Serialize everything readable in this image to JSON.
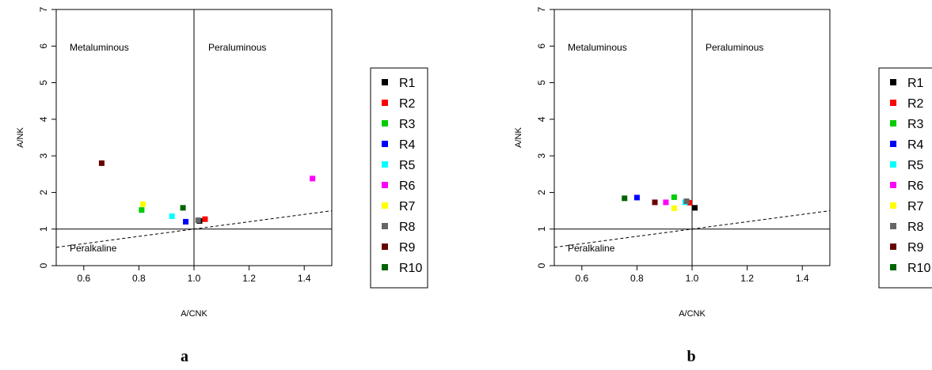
{
  "chart_data": [
    {
      "type": "scatter",
      "panel_label": "a",
      "xlabel": "A/CNK",
      "ylabel": "A/NK",
      "xlim": [
        0.5,
        1.5
      ],
      "ylim": [
        0,
        7
      ],
      "xticks": [
        "0.6",
        "0.8",
        "1.0",
        "1.2",
        "1.4"
      ],
      "yticks": [
        "0",
        "1",
        "2",
        "3",
        "4",
        "5",
        "6",
        "7"
      ],
      "region_labels": [
        "Metaluminous",
        "Peraluminous",
        "Peralkaline"
      ],
      "reference_lines": {
        "vertical_x": 1.0,
        "horizontal_y": 1.0,
        "dashed_line": [
          [
            0.5,
            0.5
          ],
          [
            1.5,
            1.5
          ]
        ]
      },
      "legend_position": "right",
      "series": [
        {
          "name": "R1",
          "color": "#000000",
          "x": [
            1.02
          ],
          "y": [
            1.22
          ]
        },
        {
          "name": "R2",
          "color": "#ff0000",
          "x": [
            1.04
          ],
          "y": [
            1.27
          ]
        },
        {
          "name": "R3",
          "color": "#00cd00",
          "x": [
            0.81
          ],
          "y": [
            1.52
          ]
        },
        {
          "name": "R4",
          "color": "#0000ff",
          "x": [
            0.97
          ],
          "y": [
            1.2
          ]
        },
        {
          "name": "R5",
          "color": "#00ffff",
          "x": [
            0.92
          ],
          "y": [
            1.35
          ]
        },
        {
          "name": "R6",
          "color": "#ff00ff",
          "x": [
            1.43
          ],
          "y": [
            2.38
          ]
        },
        {
          "name": "R7",
          "color": "#ffff00",
          "x": [
            0.815
          ],
          "y": [
            1.68
          ]
        },
        {
          "name": "R8",
          "color": "#666666",
          "x": [
            1.015
          ],
          "y": [
            1.24
          ]
        },
        {
          "name": "R9",
          "color": "#660000",
          "x": [
            0.665
          ],
          "y": [
            2.8
          ]
        },
        {
          "name": "R10",
          "color": "#006400",
          "x": [
            0.96
          ],
          "y": [
            1.58
          ]
        }
      ]
    },
    {
      "type": "scatter",
      "panel_label": "b",
      "xlabel": "A/CNK",
      "ylabel": "A/NK",
      "xlim": [
        0.5,
        1.5
      ],
      "ylim": [
        0,
        7
      ],
      "xticks": [
        "0.6",
        "0.8",
        "1.0",
        "1.2",
        "1.4"
      ],
      "yticks": [
        "0",
        "1",
        "2",
        "3",
        "4",
        "5",
        "6",
        "7"
      ],
      "region_labels": [
        "Metaluminous",
        "Peraluminous",
        "Peralkaline"
      ],
      "reference_lines": {
        "vertical_x": 1.0,
        "horizontal_y": 1.0,
        "dashed_line": [
          [
            0.5,
            0.5
          ],
          [
            1.5,
            1.5
          ]
        ]
      },
      "legend_position": "right",
      "series": [
        {
          "name": "R1",
          "color": "#000000",
          "x": [
            1.01
          ],
          "y": [
            1.58
          ]
        },
        {
          "name": "R2",
          "color": "#ff0000",
          "x": [
            0.99
          ],
          "y": [
            1.72
          ]
        },
        {
          "name": "R3",
          "color": "#00cd00",
          "x": [
            0.935
          ],
          "y": [
            1.87
          ]
        },
        {
          "name": "R4",
          "color": "#0000ff",
          "x": [
            0.8
          ],
          "y": [
            1.86
          ]
        },
        {
          "name": "R5",
          "color": "#00ffff",
          "x": [
            0.975
          ],
          "y": [
            1.73
          ]
        },
        {
          "name": "R6",
          "color": "#ff00ff",
          "x": [
            0.905
          ],
          "y": [
            1.73
          ]
        },
        {
          "name": "R7",
          "color": "#ffff00",
          "x": [
            0.935
          ],
          "y": [
            1.57
          ]
        },
        {
          "name": "R8",
          "color": "#666666",
          "x": [
            0.98
          ],
          "y": [
            1.76
          ]
        },
        {
          "name": "R9",
          "color": "#660000",
          "x": [
            0.865
          ],
          "y": [
            1.73
          ]
        },
        {
          "name": "R10",
          "color": "#006400",
          "x": [
            0.755
          ],
          "y": [
            1.84
          ]
        }
      ]
    }
  ]
}
